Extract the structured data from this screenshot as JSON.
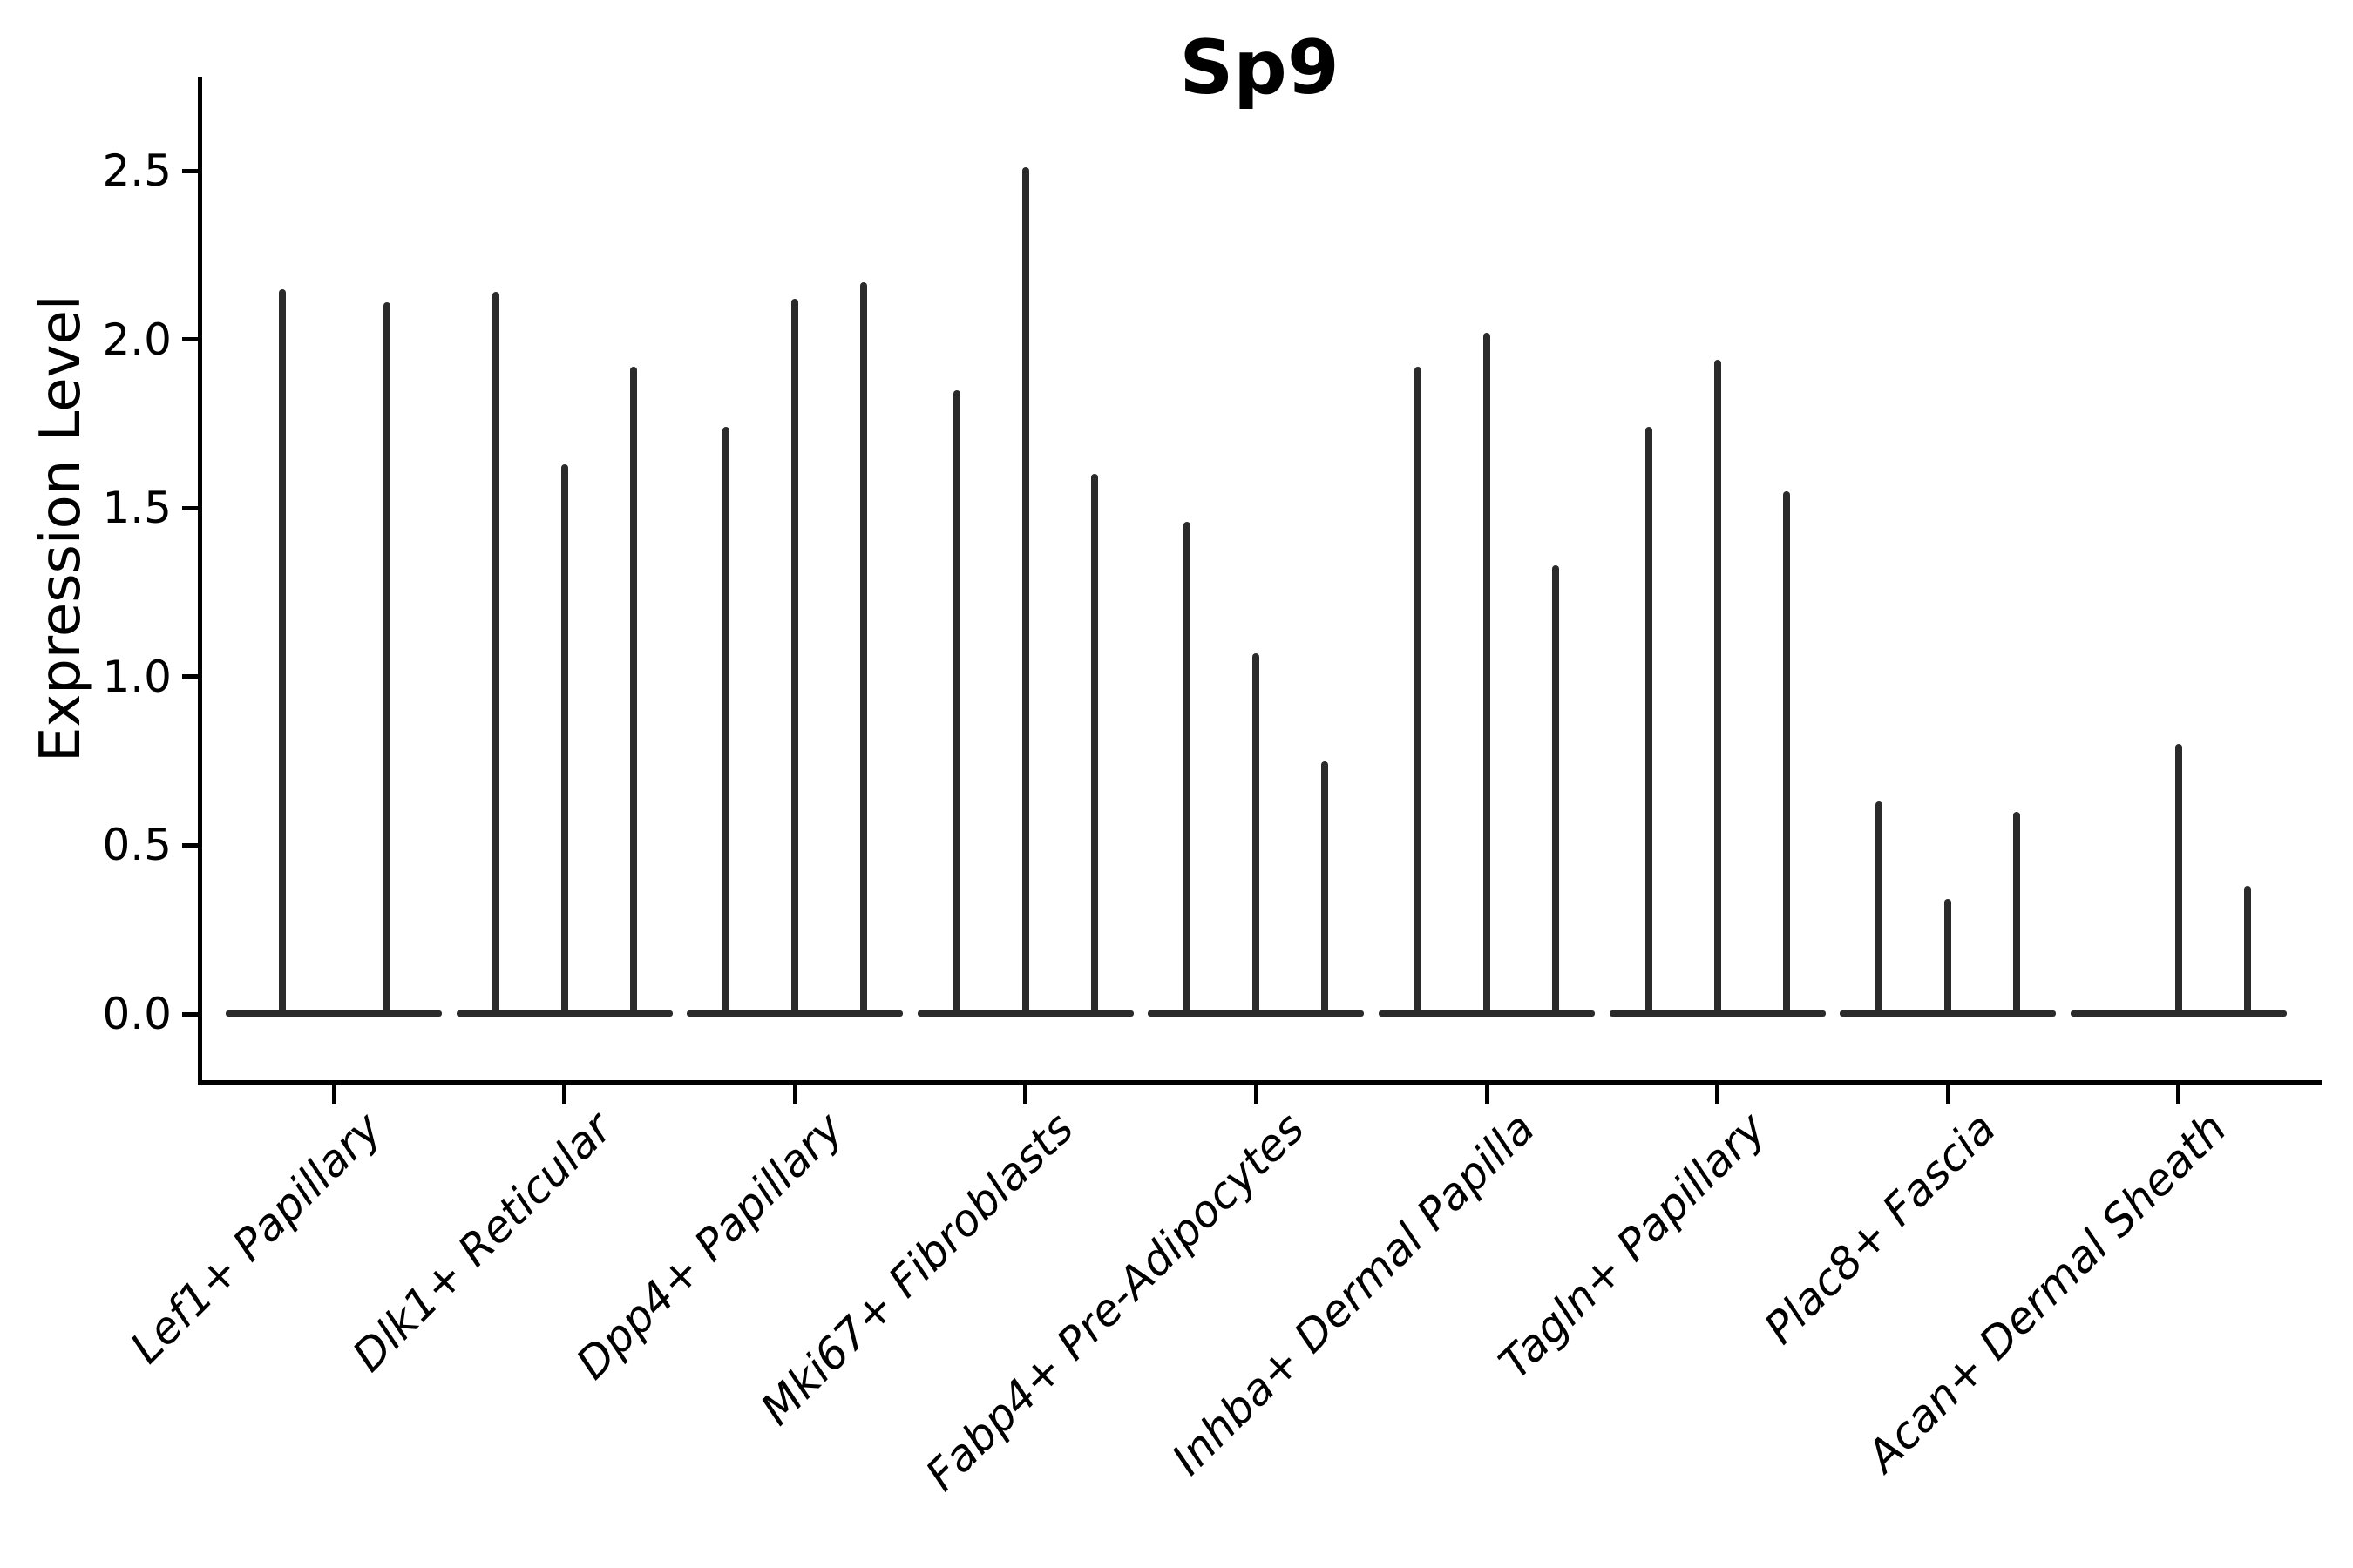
{
  "chart_data": {
    "type": "violin",
    "title": "Sp9",
    "ylabel": "Expression Level",
    "xlabel": "",
    "grid": false,
    "legend": null,
    "ylim": [
      -0.08,
      2.78
    ],
    "yticks": [
      0,
      0.5,
      1,
      1.5,
      2,
      2.5
    ],
    "ytick_labels": [
      "0.0",
      "0.5",
      "1.0",
      "1.5",
      "2.0",
      "2.5"
    ],
    "categories": [
      "Lef1+ Papillary",
      "Dlk1+ Reticular",
      "Dpp4+ Papillary",
      "Mki67+ Fibroblasts",
      "Fabp4+ Pre-Adipocytes",
      "Inhba+ Dermal Papilla",
      "Tagln+ Papillary",
      "Plac8+ Fascia",
      "Acan+ Dermal Sheath"
    ],
    "groups": [
      {
        "category": "Lef1+ Papillary",
        "violins": [
          {
            "offset": -59,
            "peak": 2.15
          },
          {
            "offset": 61,
            "peak": 2.11
          }
        ]
      },
      {
        "category": "Dlk1+ Reticular",
        "violins": [
          {
            "offset": -79,
            "peak": 2.14
          },
          {
            "offset": 0,
            "peak": 1.63
          },
          {
            "offset": 79,
            "peak": 1.92
          }
        ]
      },
      {
        "category": "Dpp4+ Papillary",
        "violins": [
          {
            "offset": -79,
            "peak": 1.74
          },
          {
            "offset": 0,
            "peak": 2.12
          },
          {
            "offset": 79,
            "peak": 2.17
          }
        ]
      },
      {
        "category": "Mki67+ Fibroblasts",
        "violins": [
          {
            "offset": -79,
            "peak": 1.85
          },
          {
            "offset": 0,
            "peak": 2.51
          },
          {
            "offset": 79,
            "peak": 1.6
          }
        ]
      },
      {
        "category": "Fabp4+ Pre-Adipocytes",
        "violins": [
          {
            "offset": -79,
            "peak": 1.46
          },
          {
            "offset": 0,
            "peak": 1.07
          },
          {
            "offset": 79,
            "peak": 0.75
          }
        ]
      },
      {
        "category": "Inhba+ Dermal Papilla",
        "violins": [
          {
            "offset": -79,
            "peak": 1.92
          },
          {
            "offset": 0,
            "peak": 2.02
          },
          {
            "offset": 79,
            "peak": 1.33
          }
        ]
      },
      {
        "category": "Tagln+ Papillary",
        "violins": [
          {
            "offset": -79,
            "peak": 1.74
          },
          {
            "offset": 0,
            "peak": 1.94
          },
          {
            "offset": 79,
            "peak": 1.55
          }
        ]
      },
      {
        "category": "Plac8+ Fascia",
        "violins": [
          {
            "offset": -79,
            "peak": 0.63
          },
          {
            "offset": 0,
            "peak": 0.34
          },
          {
            "offset": 79,
            "peak": 0.6
          }
        ]
      },
      {
        "category": "Acan+ Dermal Sheath",
        "violins": [
          {
            "offset": -79,
            "peak": 0
          },
          {
            "offset": 0,
            "peak": 0.8
          },
          {
            "offset": 79,
            "peak": 0.38
          }
        ]
      }
    ],
    "colors": {
      "spike": "#2b2b2b",
      "axis": "#000000",
      "text": "#000000",
      "background": "#ffffff"
    }
  }
}
